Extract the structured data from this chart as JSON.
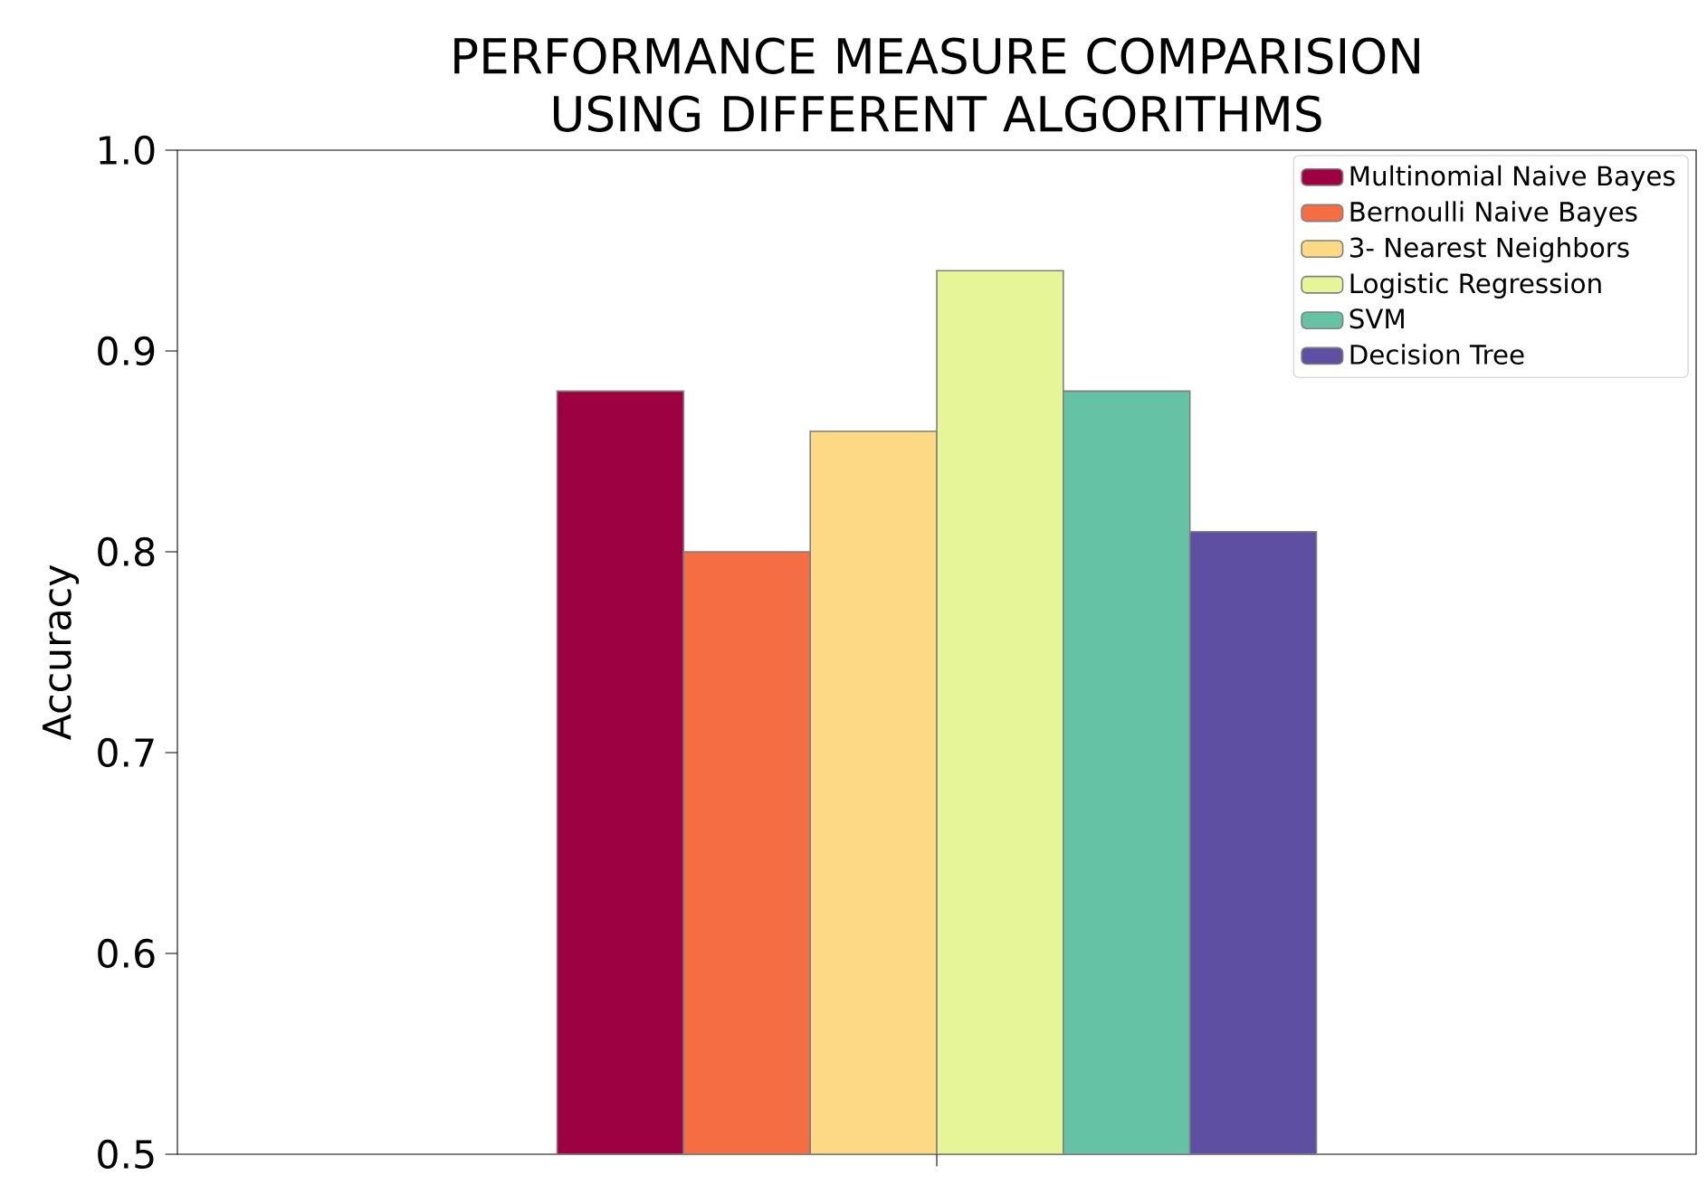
{
  "chart_data": {
    "type": "bar",
    "title": "PERFORMANCE MEASURE COMPARISION USING DIFFERENT ALGORITHMS",
    "ylabel": "Accuracy",
    "categories": [
      null
    ],
    "series": [
      {
        "name": "Multinomial Naive Bayes",
        "color": "#9e0142",
        "values": [
          0.88
        ]
      },
      {
        "name": "Bernoulli Naive Bayes",
        "color": "#f46d43",
        "values": [
          0.8
        ]
      },
      {
        "name": "3- Nearest Neighbors",
        "color": "#fdd985",
        "values": [
          0.86
        ]
      },
      {
        "name": "Logistic Regression",
        "color": "#e6f598",
        "values": [
          0.94
        ]
      },
      {
        "name": "SVM",
        "color": "#66c2a5",
        "values": [
          0.88
        ]
      },
      {
        "name": "Decision Tree",
        "color": "#5e4fa2",
        "values": [
          0.81
        ]
      }
    ],
    "ylim": [
      0.5,
      1.0
    ],
    "yticks": [
      0.5,
      0.6,
      0.7,
      0.8,
      0.9,
      {
        "value": 1.0,
        "label": "1.0"
      }
    ],
    "tick_labels": "y",
    "legend": "top right",
    "grid": false
  }
}
